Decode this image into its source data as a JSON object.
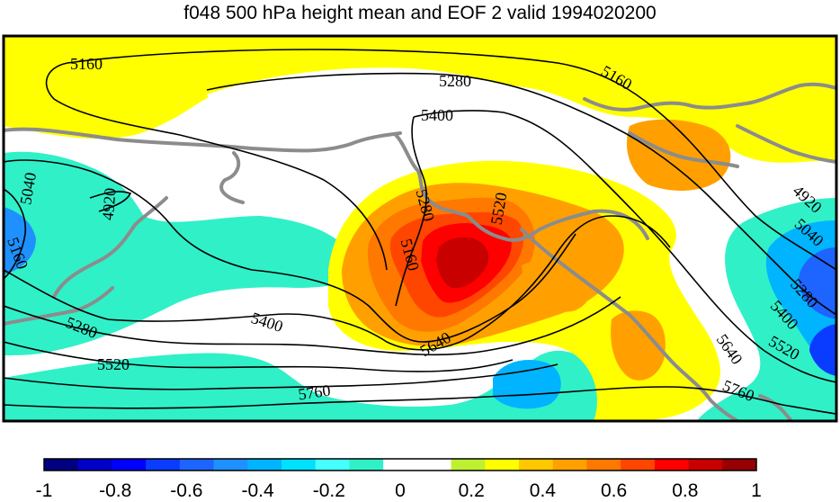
{
  "title": "f048 500 hPa height mean and EOF 2 valid 1994020200",
  "colors": {
    "coast": "#8c8c8c",
    "contour": "#000000",
    "frame": "#000000"
  },
  "contour_labels": [
    "5160",
    "5280",
    "5160",
    "5400",
    "5040",
    "4920",
    "5280",
    "5160",
    "5520",
    "5160",
    "5280",
    "5400",
    "5520",
    "5760",
    "5640",
    "4920",
    "5040",
    "5280",
    "5400",
    "5520",
    "5640",
    "5760"
  ],
  "colorbar": {
    "colors": [
      "#000080",
      "#0000c8",
      "#0000ff",
      "#0a3cff",
      "#1e64ff",
      "#1e90ff",
      "#00b4ff",
      "#00e1ff",
      "#46ffff",
      "#30f0c8",
      "#ffffff",
      "#ffffff",
      "#bef032",
      "#ffff00",
      "#ffc800",
      "#ffa000",
      "#ff7800",
      "#ff4600",
      "#ff0000",
      "#c80000",
      "#960000"
    ],
    "labels": [
      "-1",
      "-0.8",
      "-0.6",
      "-0.4",
      "-0.2",
      "0",
      "0.2",
      "0.4",
      "0.6",
      "0.8",
      "1"
    ]
  }
}
